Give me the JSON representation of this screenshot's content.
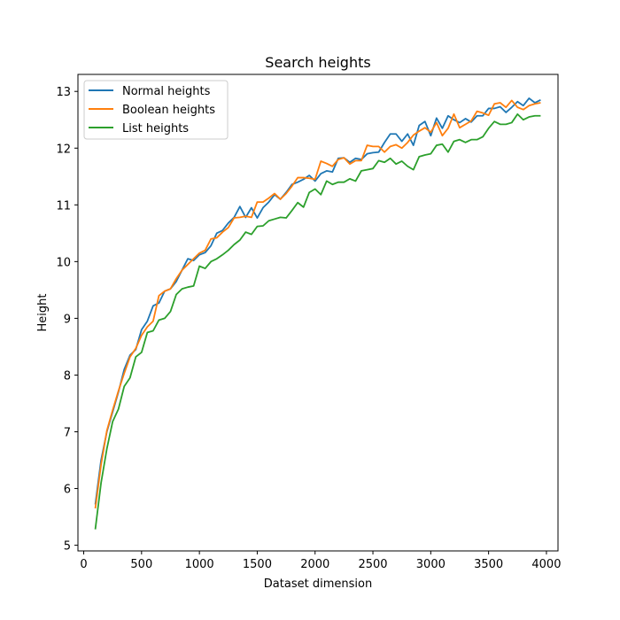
{
  "chart_data": {
    "type": "line",
    "title": "Search heights",
    "xlabel": "Dataset dimension",
    "ylabel": "Height",
    "xlim": [
      -50,
      4100
    ],
    "ylim": [
      4.9,
      13.3
    ],
    "xticks": [
      0,
      500,
      1000,
      1500,
      2000,
      2500,
      3000,
      3500,
      4000
    ],
    "yticks": [
      5,
      6,
      7,
      8,
      9,
      10,
      11,
      12,
      13
    ],
    "grid": false,
    "legend_position": "top-left",
    "x": [
      100,
      150,
      200,
      250,
      300,
      350,
      400,
      450,
      500,
      550,
      600,
      650,
      700,
      750,
      800,
      850,
      900,
      950,
      1000,
      1050,
      1100,
      1150,
      1200,
      1250,
      1300,
      1350,
      1400,
      1450,
      1500,
      1550,
      1600,
      1650,
      1700,
      1750,
      1800,
      1850,
      1900,
      1950,
      2000,
      2050,
      2100,
      2150,
      2200,
      2250,
      2300,
      2350,
      2400,
      2450,
      2500,
      2550,
      2600,
      2650,
      2700,
      2750,
      2800,
      2850,
      2900,
      2950,
      3000,
      3050,
      3100,
      3150,
      3200,
      3250,
      3300,
      3350,
      3400,
      3450,
      3500,
      3550,
      3600,
      3650,
      3700,
      3750,
      3800,
      3850,
      3900,
      3950
    ],
    "series": [
      {
        "name": "Normal heights",
        "color": "#1f77b4",
        "values": [
          5.72,
          6.5,
          7.0,
          7.35,
          7.7,
          8.1,
          8.35,
          8.45,
          8.8,
          8.95,
          9.22,
          9.27,
          9.48,
          9.52,
          9.65,
          9.85,
          10.05,
          10.02,
          10.12,
          10.16,
          10.28,
          10.5,
          10.55,
          10.68,
          10.78,
          10.97,
          10.78,
          10.95,
          10.77,
          10.95,
          11.05,
          11.18,
          11.1,
          11.22,
          11.36,
          11.4,
          11.45,
          11.52,
          11.42,
          11.55,
          11.6,
          11.58,
          11.82,
          11.83,
          11.75,
          11.82,
          11.8,
          11.9,
          11.92,
          11.93,
          12.1,
          12.25,
          12.25,
          12.12,
          12.25,
          12.05,
          12.4,
          12.47,
          12.22,
          12.53,
          12.35,
          12.57,
          12.5,
          12.45,
          12.52,
          12.46,
          12.57,
          12.57,
          12.7,
          12.7,
          12.73,
          12.63,
          12.72,
          12.82,
          12.75,
          12.88,
          12.8,
          12.85
        ]
      },
      {
        "name": "Boolean heights",
        "color": "#ff7f0e",
        "values": [
          5.65,
          6.42,
          7.02,
          7.38,
          7.72,
          8.03,
          8.32,
          8.47,
          8.7,
          8.85,
          8.95,
          9.4,
          9.48,
          9.52,
          9.7,
          9.85,
          9.95,
          10.05,
          10.15,
          10.2,
          10.4,
          10.42,
          10.52,
          10.6,
          10.77,
          10.78,
          10.8,
          10.78,
          11.05,
          11.05,
          11.12,
          11.2,
          11.1,
          11.2,
          11.33,
          11.48,
          11.48,
          11.47,
          11.45,
          11.77,
          11.73,
          11.68,
          11.8,
          11.83,
          11.72,
          11.78,
          11.78,
          12.05,
          12.03,
          12.03,
          11.93,
          12.03,
          12.06,
          12.0,
          12.1,
          12.23,
          12.3,
          12.36,
          12.28,
          12.45,
          12.22,
          12.35,
          12.6,
          12.36,
          12.42,
          12.48,
          12.65,
          12.62,
          12.58,
          12.78,
          12.8,
          12.72,
          12.84,
          12.72,
          12.68,
          12.75,
          12.78,
          12.8
        ]
      },
      {
        "name": "List heights",
        "color": "#2ca02c",
        "values": [
          5.28,
          6.1,
          6.7,
          7.18,
          7.4,
          7.8,
          7.95,
          8.32,
          8.4,
          8.75,
          8.78,
          8.97,
          9.0,
          9.12,
          9.42,
          9.52,
          9.55,
          9.57,
          9.92,
          9.88,
          10.0,
          10.05,
          10.12,
          10.2,
          10.3,
          10.38,
          10.52,
          10.48,
          10.62,
          10.63,
          10.72,
          10.75,
          10.78,
          10.77,
          10.9,
          11.04,
          10.96,
          11.22,
          11.28,
          11.18,
          11.42,
          11.36,
          11.4,
          11.4,
          11.46,
          11.42,
          11.6,
          11.62,
          11.64,
          11.78,
          11.75,
          11.82,
          11.72,
          11.77,
          11.68,
          11.62,
          11.85,
          11.88,
          11.9,
          12.05,
          12.07,
          11.93,
          12.12,
          12.15,
          12.1,
          12.15,
          12.15,
          12.2,
          12.35,
          12.47,
          12.42,
          12.42,
          12.45,
          12.6,
          12.5,
          12.55,
          12.57,
          12.57
        ]
      }
    ]
  }
}
